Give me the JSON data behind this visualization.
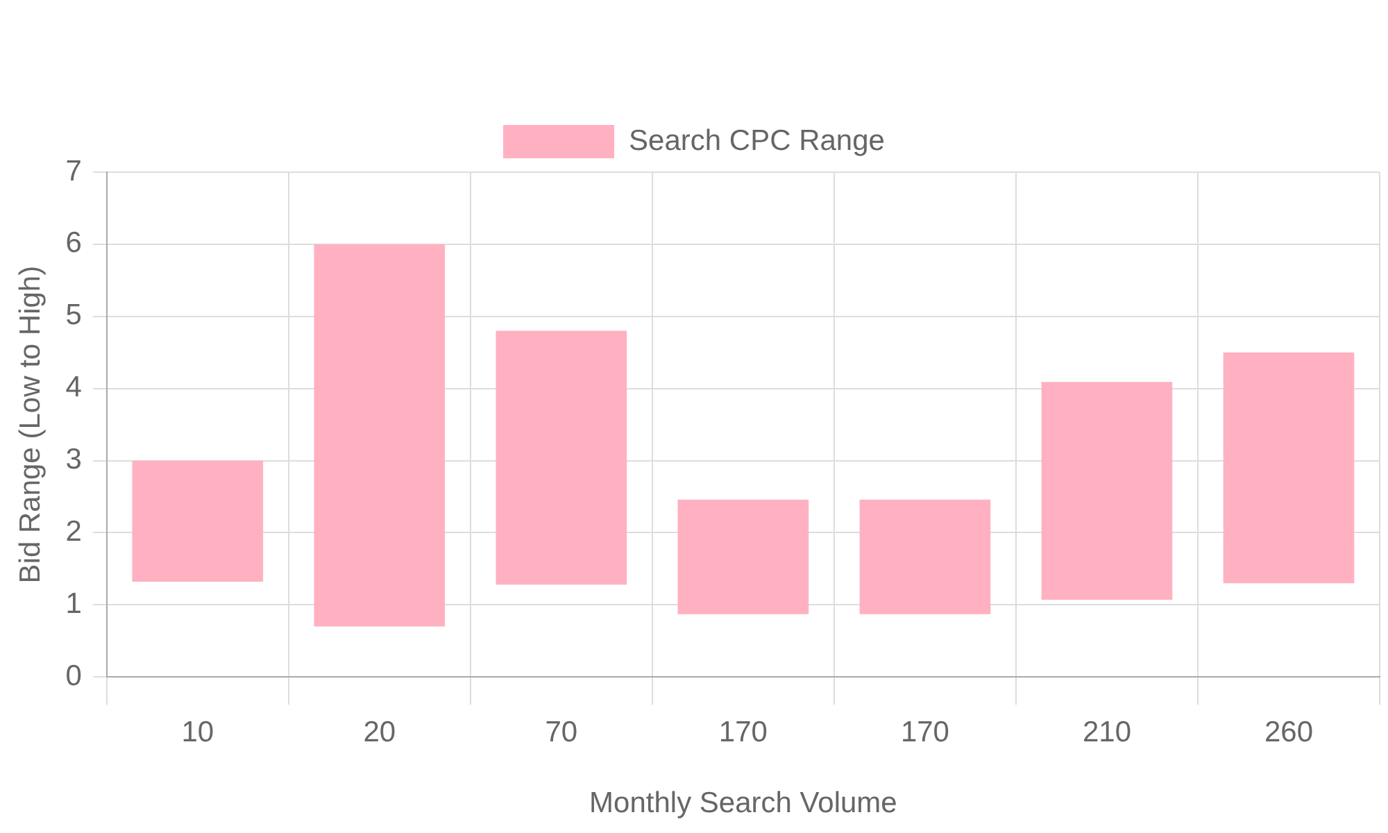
{
  "chart_data": {
    "type": "bar",
    "categories": [
      "10",
      "20",
      "70",
      "170",
      "170",
      "210",
      "260"
    ],
    "series": [
      {
        "name": "Search CPC Range",
        "color": "#ffb1c1",
        "values": [
          1.68,
          5.3,
          3.52,
          1.59,
          1.59,
          3.02,
          3.2
        ],
        "base": [
          1.32,
          0.7,
          1.28,
          0.87,
          0.87,
          1.07,
          1.3
        ]
      }
    ],
    "xlabel": "Monthly Search Volume",
    "ylabel": "Bid Range (Low to High)",
    "ylim": [
      0,
      7
    ],
    "yticks": [
      0,
      1,
      2,
      3,
      4,
      5,
      6,
      7
    ],
    "grid": true,
    "legend": "top"
  }
}
